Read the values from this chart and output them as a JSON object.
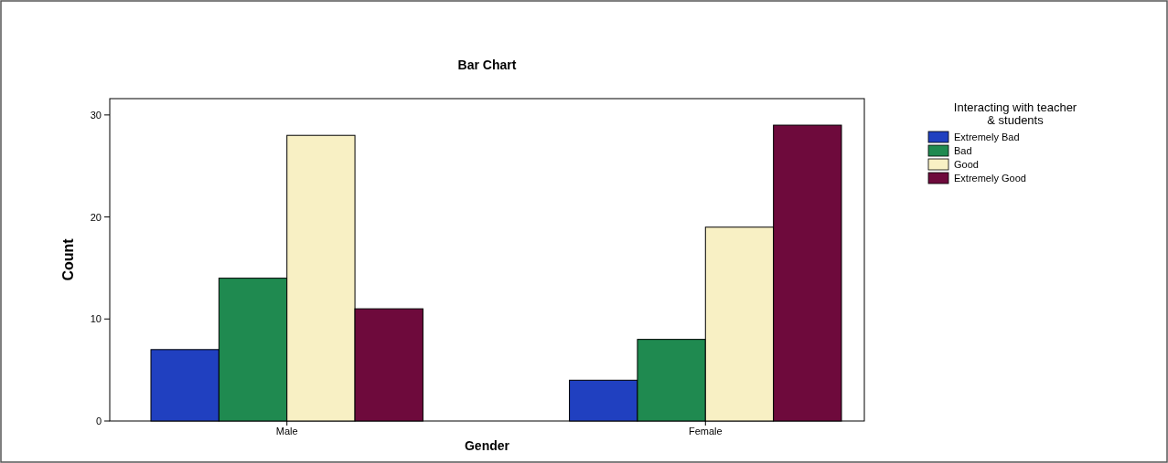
{
  "chart_data": {
    "type": "bar",
    "title": "Bar Chart",
    "xlabel": "Gender",
    "ylabel": "Count",
    "legend_title": "Interacting with teacher & students",
    "categories": [
      "Male",
      "Female"
    ],
    "series": [
      {
        "name": "Extremely Bad",
        "color": "#2040c0",
        "values": [
          7,
          4
        ]
      },
      {
        "name": "Bad",
        "color": "#1f8a50",
        "values": [
          14,
          8
        ]
      },
      {
        "name": "Good",
        "color": "#f8f0c4",
        "values": [
          28,
          19
        ]
      },
      {
        "name": "Extremely Good",
        "color": "#6e0a3c",
        "values": [
          11,
          29
        ]
      }
    ],
    "ylim": [
      0,
      31.6
    ],
    "yticks": [
      0,
      10,
      20,
      30
    ],
    "grid": false,
    "legend": "top right"
  }
}
